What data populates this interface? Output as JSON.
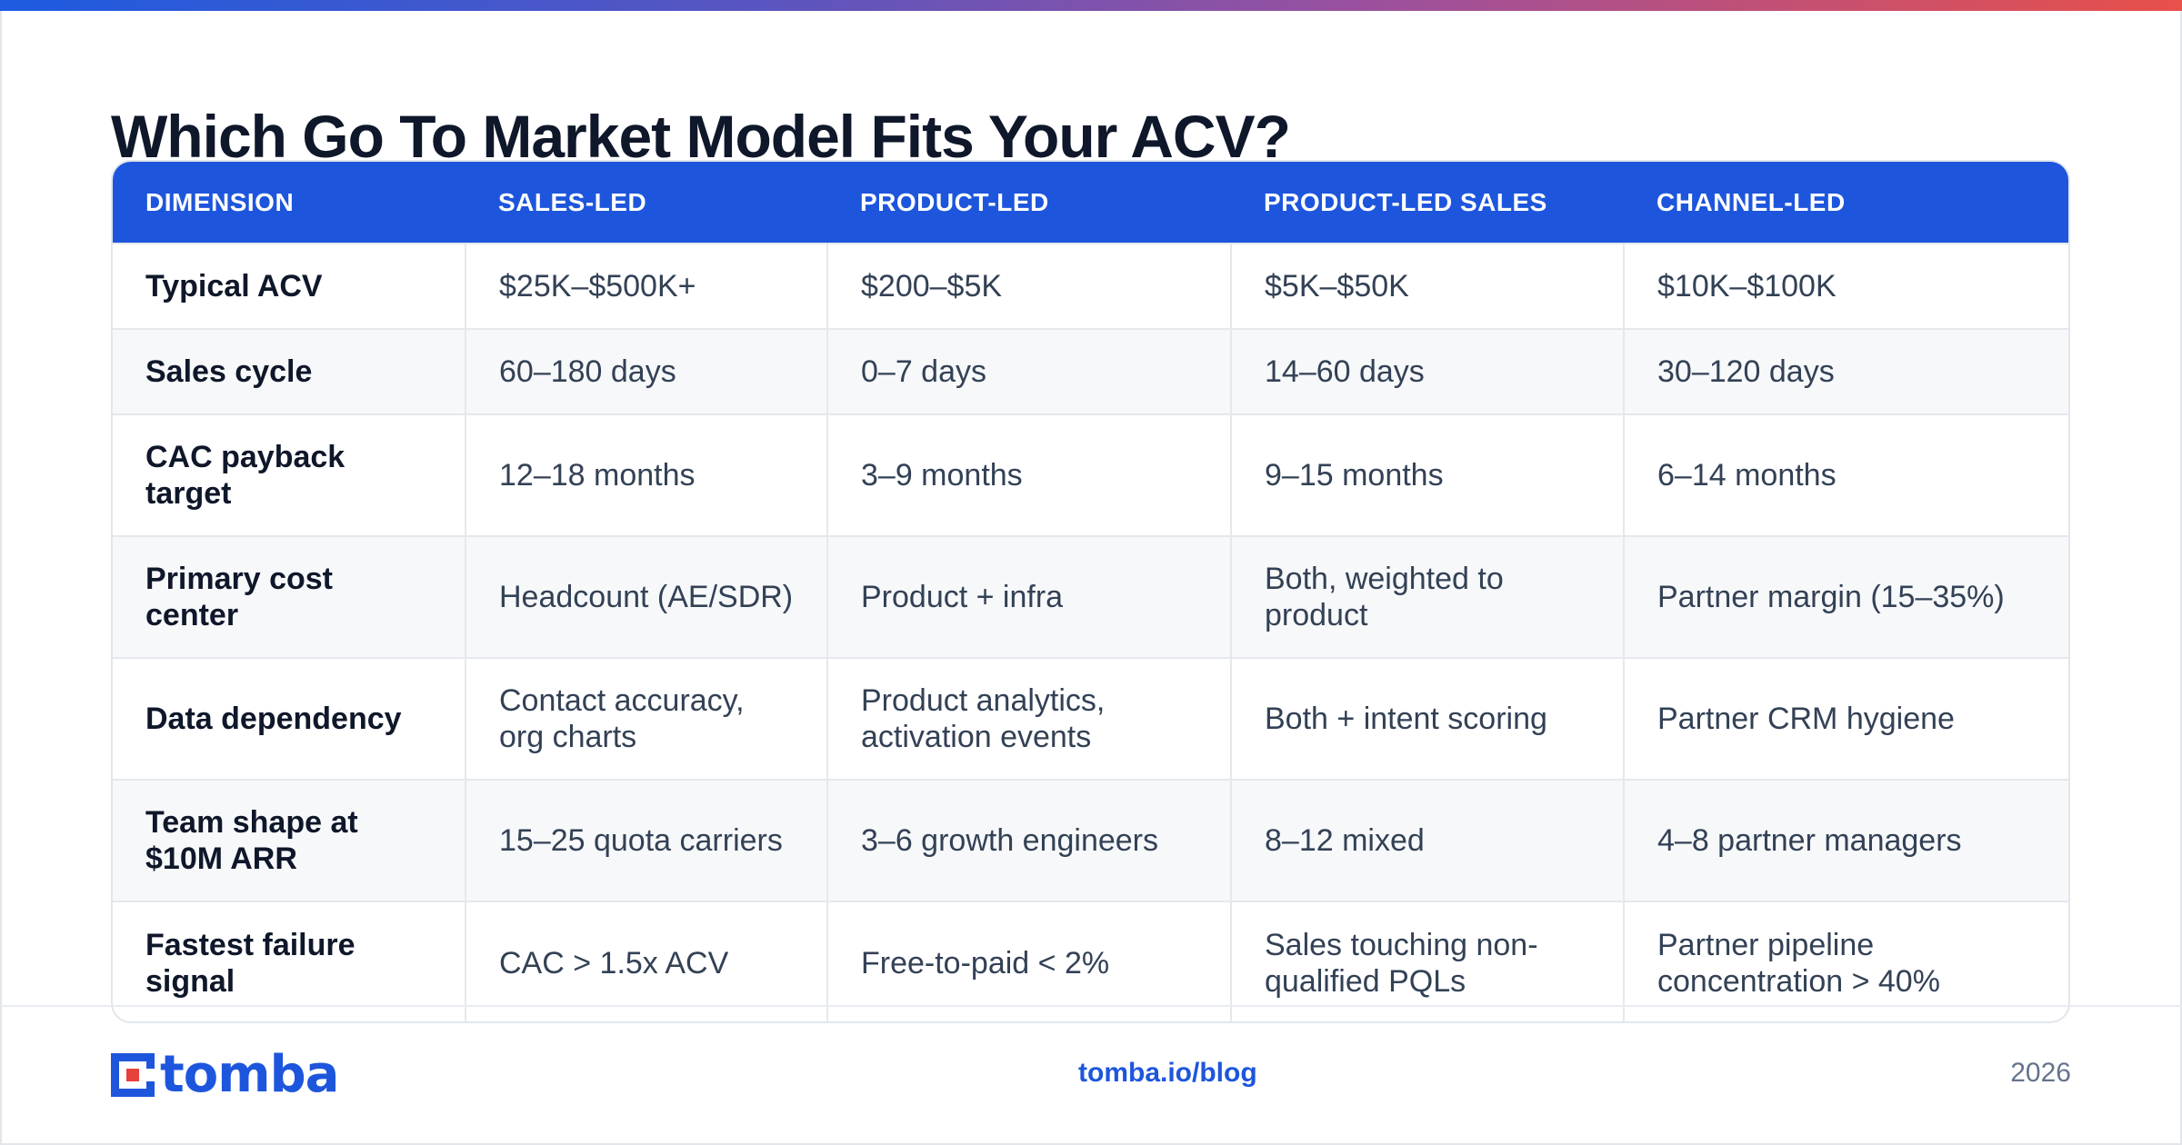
{
  "title": "Which Go To Market Model Fits Your ACV?",
  "colors": {
    "accent": "#1d56dc",
    "header_text": "#ffffff",
    "row_alt": "#f7f8fa"
  },
  "table": {
    "headers": [
      "DIMENSION",
      "SALES-LED",
      "PRODUCT-LED",
      "PRODUCT-LED SALES",
      "CHANNEL-LED"
    ],
    "rows": [
      [
        "Typical ACV",
        "$25K–$500K+",
        "$200–$5K",
        "$5K–$50K",
        "$10K–$100K"
      ],
      [
        "Sales cycle",
        "60–180 days",
        "0–7 days",
        "14–60 days",
        "30–120 days"
      ],
      [
        "CAC payback target",
        "12–18 months",
        "3–9 months",
        "9–15 months",
        "6–14 months"
      ],
      [
        "Primary cost center",
        "Headcount (AE/SDR)",
        "Product + infra",
        "Both, weighted to product",
        "Partner margin (15–35%)"
      ],
      [
        "Data dependency",
        "Contact accuracy, org charts",
        "Product analytics, activation events",
        "Both + intent scoring",
        "Partner CRM hygiene"
      ],
      [
        "Team shape at $10M ARR",
        "15–25 quota carriers",
        "3–6 growth engineers",
        "8–12 mixed",
        "4–8 partner managers"
      ],
      [
        "Fastest failure signal",
        "CAC > 1.5x ACV",
        "Free-to-paid < 2%",
        "Sales touching non-qualified PQLs",
        "Partner pipeline concentration > 40%"
      ]
    ]
  },
  "footer": {
    "logo_text": "tomba",
    "logo_icon": "tomba-logo-icon",
    "link": "tomba.io/blog",
    "year": "2026"
  }
}
